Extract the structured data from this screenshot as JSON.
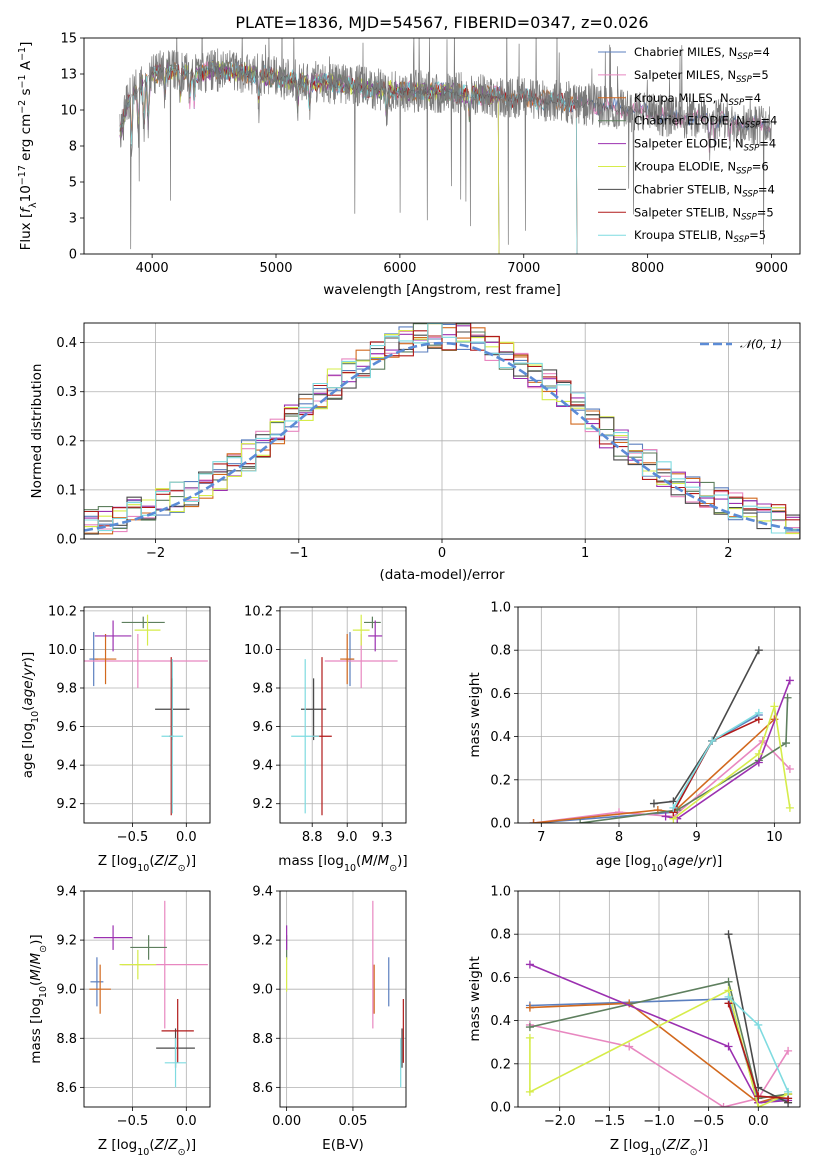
{
  "colors": {
    "Chabrier MILES": "#5b7fbf",
    "Salpeter MILES": "#e887c0",
    "Kroupa MILES": "#d2691e",
    "Chabrier ELODIE": "#5e7f5e",
    "Salpeter ELODIE": "#9b30b0",
    "Kroupa ELODIE": "#d6ec4a",
    "Chabrier STELIB": "#4a4a4a",
    "Salpeter STELIB": "#b01a1a",
    "Kroupa STELIB": "#7fdbe0",
    "normal_curve": "#5b8bd6"
  },
  "chart_data": [
    {
      "id": "spectrum",
      "type": "line",
      "title": "PLATE=1836, MJD=54567, FIBERID=0347, z=0.026",
      "xlabel": "wavelength [Angstrom, rest frame]",
      "ylabel": "Flux [fλ10⁻¹⁷ erg cm⁻² s⁻¹ A⁻¹]",
      "xlim": [
        3450,
        9230
      ],
      "ylim": [
        0,
        15
      ],
      "xticks": [
        4000,
        5000,
        6000,
        7000,
        8000,
        9000
      ],
      "yticks": [
        0.0,
        2.5,
        5.0,
        7.5,
        10.0,
        12.5,
        15.0
      ],
      "grid": false,
      "legend_position": "top-right",
      "continuum": [
        [
          3750,
          8.6
        ],
        [
          3800,
          10.5
        ],
        [
          3850,
          11.2
        ],
        [
          3900,
          11.6
        ],
        [
          3950,
          12.0
        ],
        [
          4000,
          12.4
        ],
        [
          4100,
          12.8
        ],
        [
          4200,
          12.7
        ],
        [
          4300,
          12.5
        ],
        [
          4400,
          12.6
        ],
        [
          4500,
          12.8
        ],
        [
          4700,
          12.6
        ],
        [
          4900,
          12.4
        ],
        [
          5200,
          12.0
        ],
        [
          5500,
          11.8
        ],
        [
          5800,
          11.4
        ],
        [
          6100,
          11.3
        ],
        [
          6400,
          11.2
        ],
        [
          6700,
          11.0
        ],
        [
          7000,
          10.8
        ],
        [
          7300,
          10.6
        ],
        [
          7600,
          10.3
        ],
        [
          7900,
          9.9
        ],
        [
          8200,
          9.5
        ],
        [
          8500,
          9.5
        ],
        [
          8700,
          9.2
        ],
        [
          8900,
          9.0
        ],
        [
          9000,
          8.8
        ]
      ],
      "series": [
        {
          "name": "Chabrier MILES, N_SSP=4",
          "xmax": 9000
        },
        {
          "name": "Salpeter MILES, N_SSP=5",
          "xmax": 9000
        },
        {
          "name": "Kroupa MILES, N_SSP=4",
          "xmax": 7430
        },
        {
          "name": "Chabrier ELODIE, N_SSP=4",
          "xmax": 6800
        },
        {
          "name": "Salpeter ELODIE, N_SSP=4",
          "xmax": 6800
        },
        {
          "name": "Kroupa ELODIE, N_SSP=6",
          "xmax": 6800
        },
        {
          "name": "Chabrier STELIB, N_SSP=4",
          "xmax": 9000
        },
        {
          "name": "Salpeter STELIB, N_SSP=5",
          "xmax": 7430
        },
        {
          "name": "Kroupa STELIB, N_SSP=5",
          "xmax": 7430
        }
      ],
      "legend": [
        {
          "label": "Chabrier MILES, N",
          "sub": "SSP",
          "value": "=4"
        },
        {
          "label": "Salpeter MILES, N",
          "sub": "SSP",
          "value": "=5"
        },
        {
          "label": "Kroupa MILES, N",
          "sub": "SSP",
          "value": "=4"
        },
        {
          "label": "Chabrier ELODIE, N",
          "sub": "SSP",
          "value": "=4"
        },
        {
          "label": "Salpeter ELODIE, N",
          "sub": "SSP",
          "value": "=4"
        },
        {
          "label": "Kroupa ELODIE, N",
          "sub": "SSP",
          "value": "=6"
        },
        {
          "label": "Chabrier STELIB, N",
          "sub": "SSP",
          "value": "=4"
        },
        {
          "label": "Salpeter STELIB, N",
          "sub": "SSP",
          "value": "=5"
        },
        {
          "label": "Kroupa STELIB, N",
          "sub": "SSP",
          "value": "=5"
        }
      ]
    },
    {
      "id": "residuals",
      "type": "line",
      "xlabel": "(data-model)/error",
      "ylabel": "Normed distribution",
      "xlim": [
        -2.5,
        2.5
      ],
      "ylim": [
        0,
        0.44
      ],
      "xticks": [
        -2,
        -1,
        0,
        1,
        2
      ],
      "yticks": [
        0.0,
        0.1,
        0.2,
        0.3,
        0.4
      ],
      "grid": true,
      "legend_position": "top-right",
      "legend": [
        {
          "label": "𝒩(0, 1)"
        }
      ],
      "bin_edges_range": [
        -2.5,
        2.5
      ],
      "bins": 50,
      "normal": {
        "mean": 0,
        "sigma": 1
      }
    },
    {
      "id": "age_vs_Z",
      "type": "scatter",
      "xlabel": "Z [log₁₀(Z/Z⊙)]",
      "ylabel": "age  [log₁₀(age/yr)]",
      "xlim": [
        -0.95,
        0.22
      ],
      "ylim": [
        9.1,
        10.22
      ],
      "xticks": [
        -0.5,
        0.0
      ],
      "yticks": [
        9.2,
        9.4,
        9.6,
        9.8,
        10.0,
        10.2
      ],
      "grid": true,
      "points": [
        {
          "model": "Chabrier MILES",
          "x": -0.86,
          "xerr": 0.04,
          "y": 9.95,
          "yerr": 0.14
        },
        {
          "model": "Salpeter MILES",
          "x": -0.45,
          "xerr": 0.65,
          "y": 9.94,
          "yerr": 0.14
        },
        {
          "model": "Kroupa MILES",
          "x": -0.75,
          "xerr": 0.1,
          "y": 9.95,
          "yerr": 0.13
        },
        {
          "model": "Chabrier ELODIE",
          "x": -0.4,
          "xerr": 0.2,
          "y": 10.14,
          "yerr": 0.03
        },
        {
          "model": "Salpeter ELODIE",
          "x": -0.68,
          "xerr": 0.17,
          "y": 10.07,
          "yerr": 0.08
        },
        {
          "model": "Kroupa ELODIE",
          "x": -0.36,
          "xerr": 0.12,
          "y": 10.1,
          "yerr": 0.08
        },
        {
          "model": "Chabrier STELIB",
          "x": -0.13,
          "xerr": 0.16,
          "y": 9.69,
          "yerr": 0.16
        },
        {
          "model": "Salpeter STELIB",
          "x": -0.14,
          "xerr": 0.02,
          "y": 9.55,
          "yerr": 0.41
        },
        {
          "model": "Kroupa STELIB",
          "x": -0.13,
          "xerr": 0.1,
          "y": 9.55,
          "yerr": 0.4
        }
      ]
    },
    {
      "id": "age_vs_mass",
      "type": "scatter",
      "xlabel": "mass [log₁₀(M/M⊙)]",
      "xlim": [
        8.52,
        9.42
      ],
      "ylim": [
        9.1,
        10.22
      ],
      "xticks": [
        8.75,
        9.0,
        9.25
      ],
      "yticks": [
        9.2,
        9.4,
        9.6,
        9.8,
        10.0,
        10.2
      ],
      "grid": true,
      "points": [
        {
          "model": "Chabrier MILES",
          "x": 9.02,
          "xerr": 0.03,
          "y": 9.95,
          "yerr": 0.14
        },
        {
          "model": "Salpeter MILES",
          "x": 9.1,
          "xerr": 0.26,
          "y": 9.94,
          "yerr": 0.14
        },
        {
          "model": "Kroupa MILES",
          "x": 9.0,
          "xerr": 0.05,
          "y": 9.95,
          "yerr": 0.13
        },
        {
          "model": "Chabrier ELODIE",
          "x": 9.18,
          "xerr": 0.06,
          "y": 10.14,
          "yerr": 0.03
        },
        {
          "model": "Salpeter ELODIE",
          "x": 9.2,
          "xerr": 0.05,
          "y": 10.07,
          "yerr": 0.08
        },
        {
          "model": "Kroupa ELODIE",
          "x": 9.1,
          "xerr": 0.06,
          "y": 10.1,
          "yerr": 0.08
        },
        {
          "model": "Chabrier STELIB",
          "x": 8.76,
          "xerr": 0.09,
          "y": 9.69,
          "yerr": 0.16
        },
        {
          "model": "Salpeter STELIB",
          "x": 8.82,
          "xerr": 0.07,
          "y": 9.55,
          "yerr": 0.41
        },
        {
          "model": "Kroupa STELIB",
          "x": 8.7,
          "xerr": 0.1,
          "y": 9.55,
          "yerr": 0.4
        }
      ]
    },
    {
      "id": "mass_weight_vs_age",
      "type": "line",
      "xlabel": "age  [log₁₀(age/yr)]",
      "ylabel": "mass weight",
      "xlim": [
        6.7,
        10.33
      ],
      "ylim": [
        0,
        1
      ],
      "xticks": [
        7,
        8,
        9,
        10
      ],
      "yticks": [
        0.0,
        0.2,
        0.4,
        0.6,
        0.8,
        1.0
      ],
      "grid": true,
      "series": [
        {
          "model": "Chabrier MILES",
          "x": [
            6.9,
            8.7,
            9.2,
            9.8
          ],
          "y": [
            0.0,
            0.05,
            0.38,
            0.5
          ]
        },
        {
          "model": "Salpeter MILES",
          "x": [
            6.9,
            8.0,
            8.7,
            9.85,
            10.2
          ],
          "y": [
            0.0,
            0.05,
            0.03,
            0.38,
            0.25
          ]
        },
        {
          "model": "Kroupa MILES",
          "x": [
            6.9,
            8.5,
            8.7,
            10.0
          ],
          "y": [
            0.0,
            0.06,
            0.05,
            0.48
          ]
        },
        {
          "model": "Chabrier ELODIE",
          "x": [
            7.5,
            8.75,
            9.8,
            10.15,
            10.17
          ],
          "y": [
            0.0,
            0.06,
            0.29,
            0.37,
            0.58
          ]
        },
        {
          "model": "Salpeter ELODIE",
          "x": [
            8.6,
            8.75,
            9.8,
            10.2
          ],
          "y": [
            0.03,
            0.02,
            0.28,
            0.66
          ]
        },
        {
          "model": "Kroupa ELODIE",
          "x": [
            8.7,
            9.8,
            10.0,
            10.2
          ],
          "y": [
            0.02,
            0.32,
            0.54,
            0.07
          ]
        },
        {
          "model": "Chabrier STELIB",
          "x": [
            8.45,
            8.7,
            9.2,
            9.8
          ],
          "y": [
            0.09,
            0.1,
            0.38,
            0.8
          ]
        },
        {
          "model": "Salpeter STELIB",
          "x": [
            8.7,
            9.2,
            9.8
          ],
          "y": [
            0.05,
            0.38,
            0.48
          ]
        },
        {
          "model": "Kroupa STELIB",
          "x": [
            8.7,
            9.2,
            9.8
          ],
          "y": [
            0.07,
            0.38,
            0.51
          ]
        }
      ]
    },
    {
      "id": "mass_vs_Z",
      "type": "scatter",
      "xlabel": "Z [log₁₀(Z/Z⊙)]",
      "ylabel": "mass [log₁₀(M/M⊙)]",
      "xlim": [
        -0.95,
        0.22
      ],
      "ylim": [
        8.52,
        9.4
      ],
      "xticks": [
        -0.5,
        0.0
      ],
      "yticks": [
        8.6,
        8.8,
        9.0,
        9.2,
        9.4
      ],
      "grid": true,
      "points": [
        {
          "model": "Chabrier MILES",
          "x": -0.83,
          "xerr": 0.06,
          "y": 9.03,
          "yerr": 0.1
        },
        {
          "model": "Salpeter MILES",
          "x": -0.2,
          "xerr": 0.4,
          "y": 9.1,
          "yerr": 0.26
        },
        {
          "model": "Kroupa MILES",
          "x": -0.8,
          "xerr": 0.1,
          "y": 9.0,
          "yerr": 0.1
        },
        {
          "model": "Chabrier ELODIE",
          "x": -0.35,
          "xerr": 0.17,
          "y": 9.17,
          "yerr": 0.05
        },
        {
          "model": "Salpeter ELODIE",
          "x": -0.68,
          "xerr": 0.18,
          "y": 9.21,
          "yerr": 0.05
        },
        {
          "model": "Kroupa ELODIE",
          "x": -0.45,
          "xerr": 0.17,
          "y": 9.1,
          "yerr": 0.06
        },
        {
          "model": "Chabrier STELIB",
          "x": -0.1,
          "xerr": 0.18,
          "y": 8.76,
          "yerr": 0.08
        },
        {
          "model": "Salpeter STELIB",
          "x": -0.08,
          "xerr": 0.15,
          "y": 8.83,
          "yerr": 0.13
        },
        {
          "model": "Kroupa STELIB",
          "x": -0.1,
          "xerr": 0.1,
          "y": 8.7,
          "yerr": 0.1
        }
      ]
    },
    {
      "id": "mass_vs_ebv",
      "type": "scatter",
      "xlabel": "E(B-V)",
      "xlim": [
        -0.005,
        0.09
      ],
      "ylim": [
        8.52,
        9.4
      ],
      "xticks": [
        0.0,
        0.05
      ],
      "yticks": [
        8.6,
        8.8,
        9.0,
        9.2,
        9.4
      ],
      "grid": true,
      "points": [
        {
          "model": "Chabrier MILES",
          "x": 0.077,
          "y": 9.03,
          "yerr": 0.1
        },
        {
          "model": "Salpeter MILES",
          "x": 0.065,
          "y": 9.1,
          "yerr": 0.26
        },
        {
          "model": "Kroupa MILES",
          "x": 0.066,
          "y": 9.0,
          "yerr": 0.1
        },
        {
          "model": "Chabrier ELODIE",
          "x": 0.0,
          "y": 9.17,
          "yerr": 0.05
        },
        {
          "model": "Salpeter ELODIE",
          "x": 0.0,
          "y": 9.21,
          "yerr": 0.05
        },
        {
          "model": "Kroupa ELODIE",
          "x": 0.0,
          "y": 9.06,
          "yerr": 0.07
        },
        {
          "model": "Chabrier STELIB",
          "x": 0.087,
          "y": 8.76,
          "yerr": 0.08
        },
        {
          "model": "Salpeter STELIB",
          "x": 0.088,
          "y": 8.83,
          "yerr": 0.13
        },
        {
          "model": "Kroupa STELIB",
          "x": 0.086,
          "y": 8.7,
          "yerr": 0.1
        }
      ]
    },
    {
      "id": "mass_weight_vs_Z",
      "type": "line",
      "xlabel": "Z [log₁₀(Z/Z⊙)]",
      "ylabel": "mass weight",
      "xlim": [
        -2.42,
        0.42
      ],
      "ylim": [
        0,
        1
      ],
      "xticks": [
        -2.0,
        -1.5,
        -1.0,
        -0.5,
        0.0
      ],
      "yticks": [
        0.0,
        0.2,
        0.4,
        0.6,
        0.8,
        1.0
      ],
      "grid": true,
      "series": [
        {
          "model": "Chabrier MILES",
          "x": [
            -2.3,
            -0.3,
            0.0,
            0.3
          ],
          "y": [
            0.47,
            0.5,
            0.02,
            0.04
          ]
        },
        {
          "model": "Salpeter MILES",
          "x": [
            -2.3,
            -1.3,
            -0.35,
            0.0,
            0.3
          ],
          "y": [
            0.38,
            0.28,
            0.0,
            0.04,
            0.26
          ]
        },
        {
          "model": "Kroupa MILES",
          "x": [
            -2.3,
            -1.3,
            0.0,
            0.3
          ],
          "y": [
            0.46,
            0.48,
            0.02,
            0.06
          ]
        },
        {
          "model": "Chabrier ELODIE",
          "x": [
            -2.3,
            -0.3,
            0.0,
            0.3
          ],
          "y": [
            0.37,
            0.58,
            0.04,
            0.06
          ]
        },
        {
          "model": "Salpeter ELODIE",
          "x": [
            -2.3,
            -0.3,
            0.0,
            0.3
          ],
          "y": [
            0.66,
            0.28,
            0.02,
            0.03
          ]
        },
        {
          "model": "Kroupa ELODIE",
          "x": [
            -2.3,
            -2.3,
            -0.3,
            0.0,
            0.3
          ],
          "y": [
            0.32,
            0.07,
            0.54,
            0.0,
            0.06
          ]
        },
        {
          "model": "Chabrier STELIB",
          "x": [
            -0.3,
            0.0,
            0.3
          ],
          "y": [
            0.8,
            0.09,
            0.02
          ]
        },
        {
          "model": "Salpeter STELIB",
          "x": [
            -0.3,
            0.0,
            0.3
          ],
          "y": [
            0.48,
            0.05,
            0.04
          ]
        },
        {
          "model": "Kroupa STELIB",
          "x": [
            -0.3,
            0.0,
            0.3
          ],
          "y": [
            0.51,
            0.38,
            0.07
          ]
        }
      ]
    }
  ]
}
